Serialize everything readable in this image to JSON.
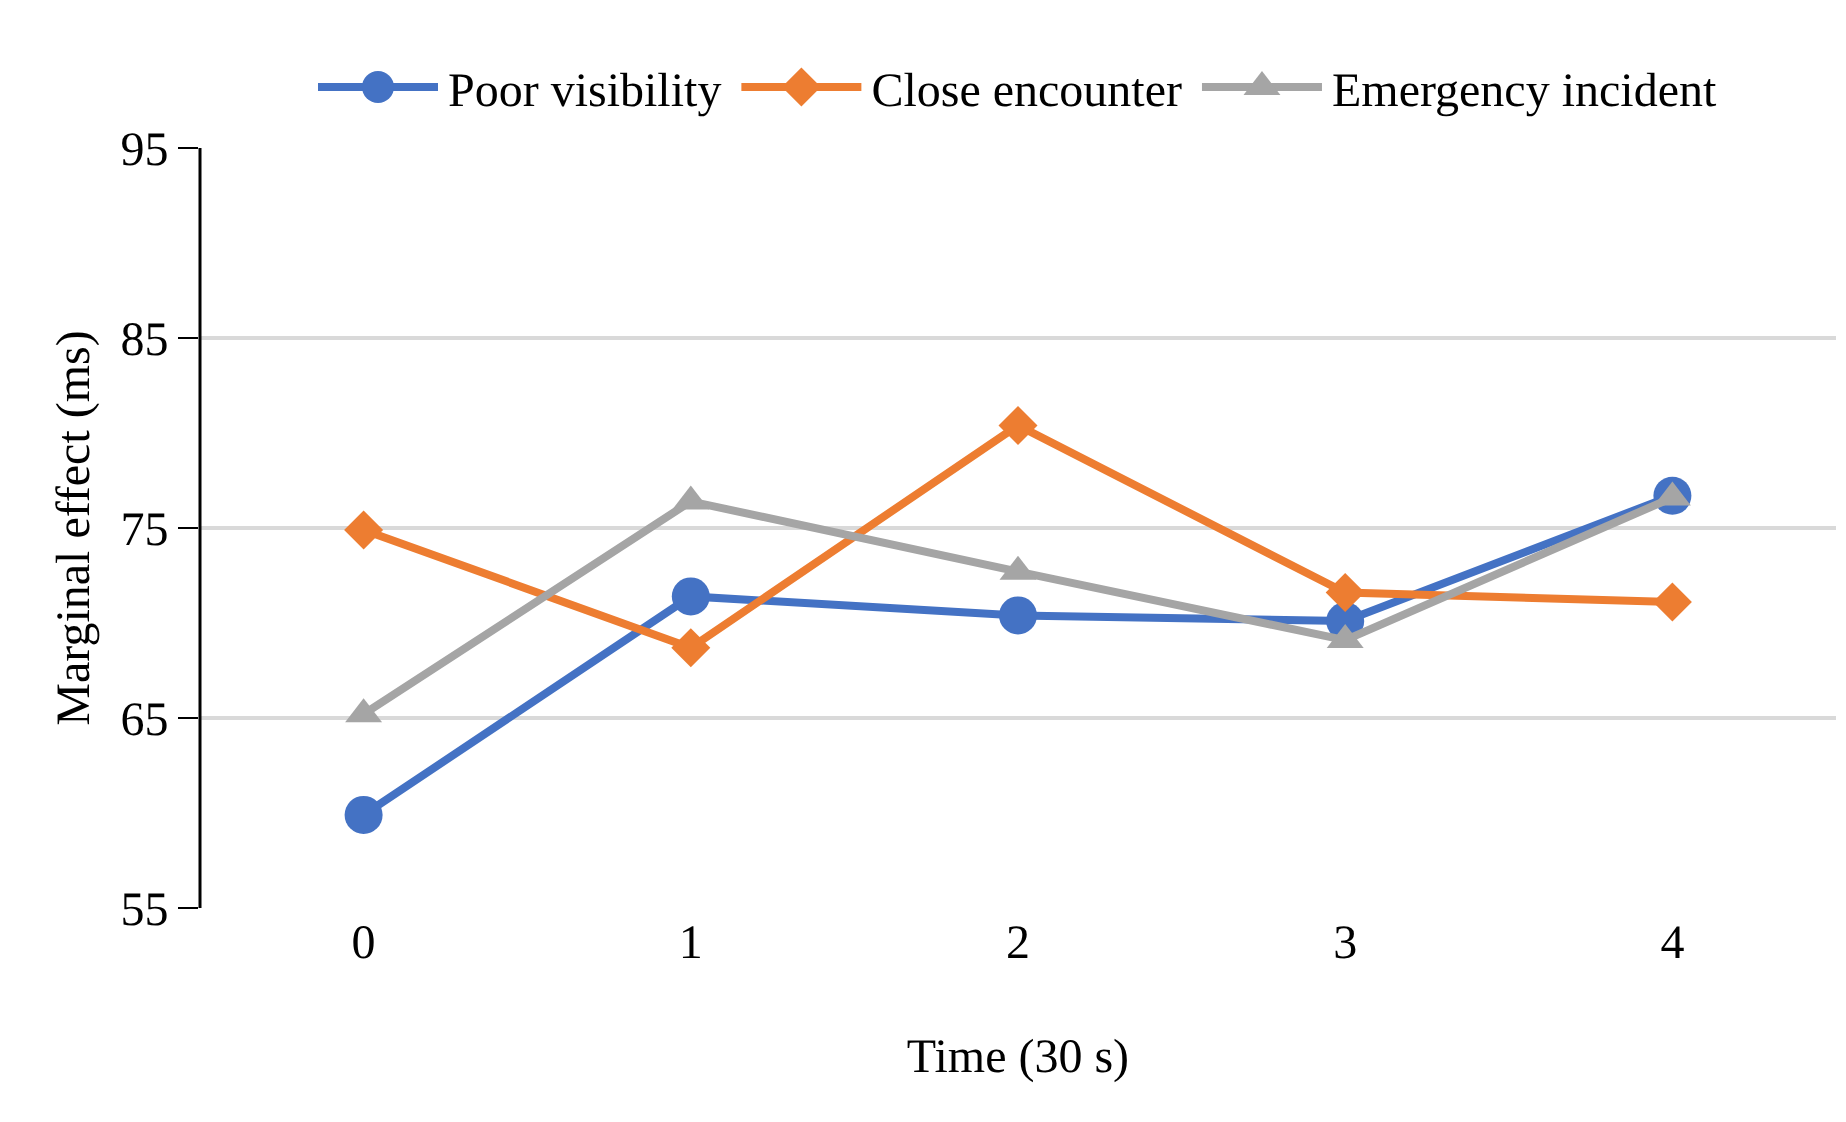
{
  "chart_data": {
    "type": "line",
    "xlabel": "Time (30 s)",
    "ylabel": "Marginal effect (ms)",
    "categories": [
      "0",
      "1",
      "2",
      "3",
      "4"
    ],
    "series": [
      {
        "name": "Poor visibility",
        "color": "#4472c4",
        "marker": "circle",
        "values": [
          59.9,
          71.4,
          70.4,
          70.1,
          76.7
        ]
      },
      {
        "name": "Close encounter",
        "color": "#ed7d31",
        "marker": "diamond",
        "values": [
          74.9,
          68.7,
          80.4,
          71.6,
          71.1
        ]
      },
      {
        "name": "Emergency incident",
        "color": "#a5a5a5",
        "marker": "triangle",
        "values": [
          65.2,
          76.4,
          72.7,
          69.1,
          76.6
        ]
      }
    ],
    "ylim": [
      55,
      95
    ],
    "yticks": [
      55,
      65,
      75,
      85,
      95
    ],
    "grid": "y",
    "legend": "top",
    "line_style": "solid"
  }
}
